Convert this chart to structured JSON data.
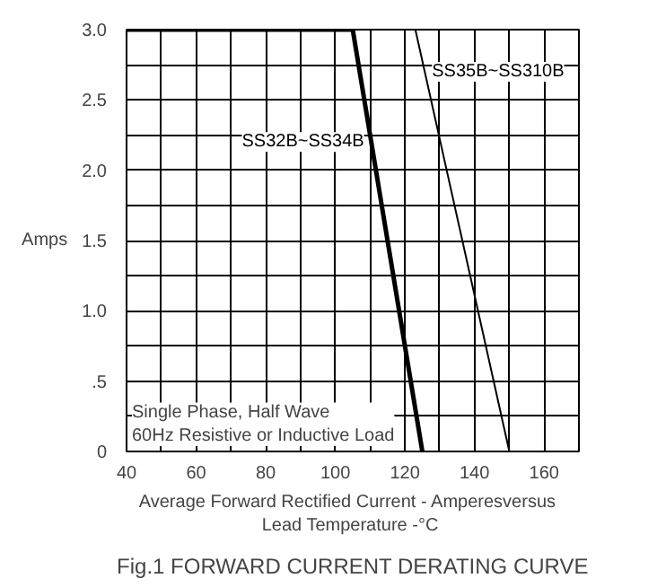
{
  "chart_data": {
    "type": "line",
    "title": "Fig.1 FORWARD CURRENT DERATING CURVE",
    "xlabel": "Average Forward Rectified Current  -  Amperesversus\nLead Temperature  -°C",
    "ylabel": "Amps",
    "series": [
      {
        "name": "SS32B~SS34B",
        "color": "#000000",
        "x": [
          40,
          105,
          125
        ],
        "values": [
          3.0,
          3.0,
          0
        ]
      },
      {
        "name": "SS35B~SS310B",
        "color": "#000000",
        "x": [
          40,
          123,
          150
        ],
        "values": [
          3.0,
          3.0,
          0
        ]
      }
    ],
    "xlim": [
      40,
      170
    ],
    "ylim": [
      0,
      3.0
    ],
    "xticks": [
      40,
      {
        "value": 50,
        "label": null
      },
      60,
      {
        "value": 70,
        "label": null
      },
      80,
      {
        "value": 90,
        "label": null
      },
      100,
      {
        "value": 110,
        "label": null
      },
      120,
      {
        "value": 130,
        "label": null
      },
      140,
      {
        "value": 150,
        "label": null
      },
      160,
      {
        "value": 170,
        "label": null
      }
    ],
    "yticks": [
      0,
      {
        "value": 0.25,
        "label": null
      },
      {
        "value": 0.5,
        "label": ".5"
      },
      {
        "value": 0.75,
        "label": null
      },
      {
        "value": 1.0,
        "label": "1.0"
      },
      {
        "value": 1.25,
        "label": null
      },
      {
        "value": 1.5,
        "label": "1.5"
      },
      {
        "value": 1.75,
        "label": null
      },
      {
        "value": 2.0,
        "label": "2.0"
      },
      {
        "value": 2.25,
        "label": null
      },
      {
        "value": 2.5,
        "label": "2.5"
      },
      {
        "value": 2.75,
        "label": null
      },
      {
        "value": 3.0,
        "label": "3.0"
      }
    ],
    "grid": true,
    "legend": false,
    "marker": "none",
    "line_style": "solid",
    "annotations": [
      "Single Phase, Half Wave\n60Hz Resistive or Inductive Load"
    ]
  }
}
